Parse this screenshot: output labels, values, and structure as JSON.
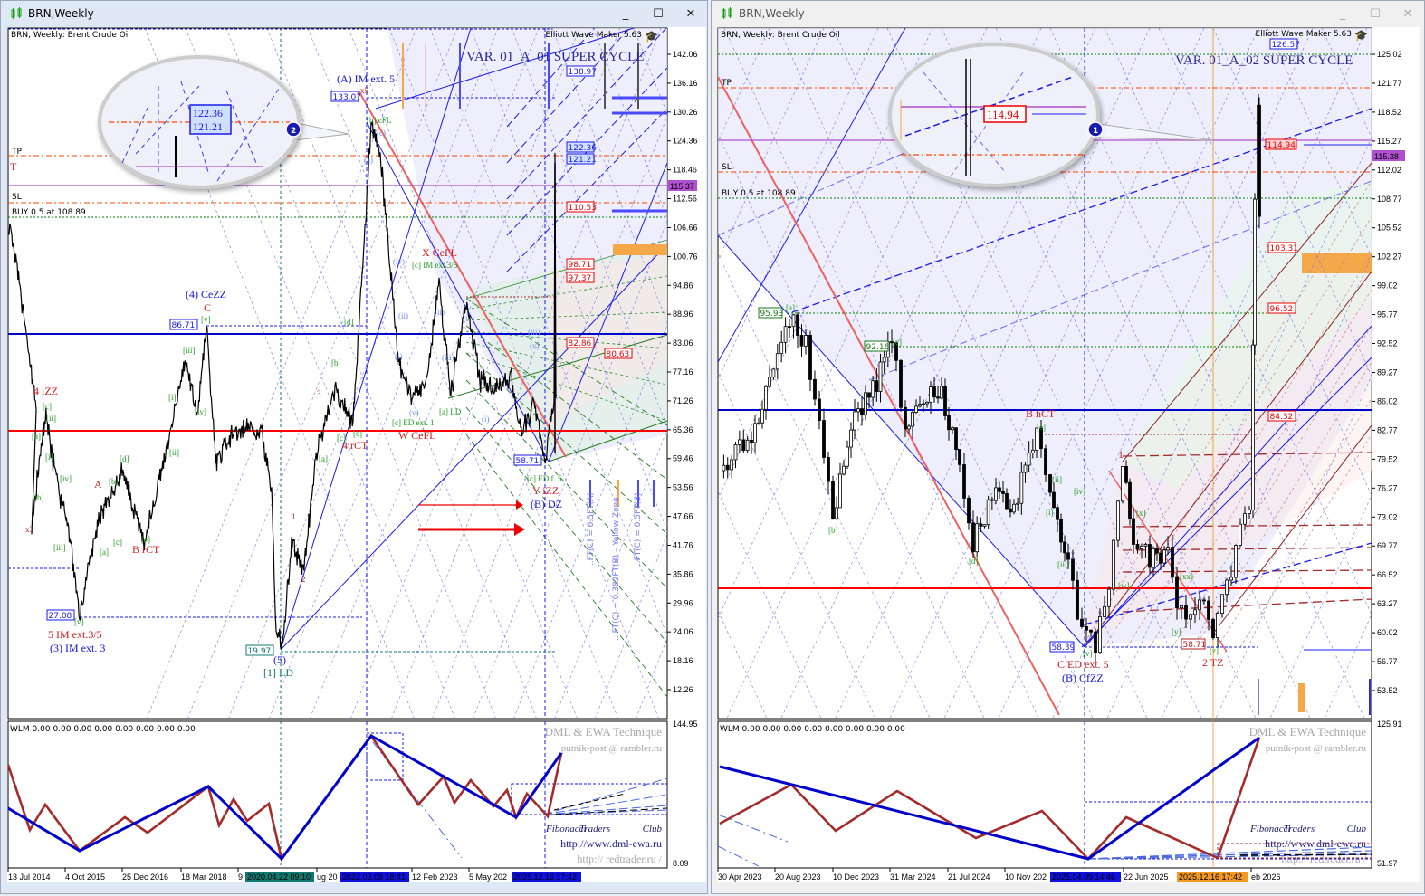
{
  "colors": {
    "wave_red": "#cc2020",
    "wave_green": "#1f9a1f",
    "wave_blue": "#1515e0",
    "roman_blue": "#6e8fe6",
    "teal": "#107a70",
    "tp_line": "#ff4500",
    "buy_line": "#008000",
    "support": "#0000cc",
    "resistance": "#ff0000",
    "current": "#b050d0",
    "zone": "#f5a84a",
    "zigzag_blue": "#0000cc",
    "zigzag_red": "#a52a2a"
  },
  "windows": [
    {
      "title": "BRN,Weekly",
      "chart_label": "BRN, Weekly:  Brent Crude Oil",
      "ewm": "Elliott Wave Maker 5.63",
      "variant": "VAR. 01_A_01 SUPER CYCLE",
      "levels": {
        "tp": "TP",
        "t": "T",
        "sl": "SL",
        "buy": "BUY 0.5 at 108.89"
      },
      "current_price": "115.37",
      "price_axis": [
        "142.06",
        "136.16",
        "130.26",
        "124.36",
        "118.46",
        "112.56",
        "106.66",
        "100.76",
        "94.86",
        "88.96",
        "83.06",
        "77.16",
        "71.26",
        "65.36",
        "59.46",
        "53.56",
        "47.66",
        "41.76",
        "35.86",
        "29.96",
        "24.06",
        "18.16",
        "12.26"
      ],
      "time_axis": [
        "13 Jul 2014",
        "4 Oct 2015",
        "25 Dec 2016",
        "18 Mar 2018",
        "9",
        "ug 20",
        "12 Feb 2023",
        "5 May 202"
      ],
      "time_markers": [
        "2020.04.22 09:10",
        "2022.03.08 18:41",
        "2025.12.16 17:42"
      ],
      "indicator": {
        "header": "WLM 0.00 0.00 0.00 0.00 0.00 0.00 0.00 0.00",
        "max": "144.95",
        "min": "8.09"
      },
      "watermark": [
        "DML & EWA Technique",
        "putnik-post @ rambler.ru",
        "Fibonacci",
        "Traders",
        "Club",
        "http://www.dml-ewa.ru",
        "http:// redtrader.ru /"
      ],
      "callout_badge": "2",
      "callout_values": [
        "122.36",
        "121.21"
      ],
      "price_tags": [
        {
          "t": "133.07",
          "c": "blue"
        },
        {
          "t": "138.97",
          "c": "blue"
        },
        {
          "t": "122.36",
          "c": "blue"
        },
        {
          "t": "121.21",
          "c": "blue"
        },
        {
          "t": "110.53",
          "c": "red"
        },
        {
          "t": "98.71",
          "c": "red"
        },
        {
          "t": "97.37",
          "c": "red"
        },
        {
          "t": "82.86",
          "c": "red"
        },
        {
          "t": "80.63",
          "c": "red"
        },
        {
          "t": "86.71",
          "c": "blue"
        },
        {
          "t": "27.08",
          "c": "blue"
        },
        {
          "t": "19.97",
          "c": "teal"
        },
        {
          "t": "58.71",
          "c": "blue"
        }
      ],
      "wave_labels": [
        {
          "t": "(A) IM ext. 5",
          "c": "blue"
        },
        {
          "t": "x5",
          "c": "red"
        },
        {
          "t": "[b] cFL",
          "c": "green"
        },
        {
          "t": "X CeFL",
          "c": "red"
        },
        {
          "t": "[c] IM ext.3/5",
          "c": "green"
        },
        {
          "t": "(4) CeZZ",
          "c": "blue"
        },
        {
          "t": "C",
          "c": "red"
        },
        {
          "t": "[v]",
          "c": "green"
        },
        {
          "t": "[d]",
          "c": "green"
        },
        {
          "t": "4 iZZ",
          "c": "red"
        },
        {
          "t": "[c]",
          "c": "green"
        },
        {
          "t": "[ii]",
          "c": "green"
        },
        {
          "t": "[a]",
          "c": "green"
        },
        {
          "t": "[i]",
          "c": "green"
        },
        {
          "t": "[iv]",
          "c": "green"
        },
        {
          "t": "[b]",
          "c": "green"
        },
        {
          "t": "x3",
          "c": "red"
        },
        {
          "t": "[iii]",
          "c": "green"
        },
        {
          "t": "A",
          "c": "red"
        },
        {
          "t": "[b]",
          "c": "green"
        },
        {
          "t": "[d]",
          "c": "green"
        },
        {
          "t": "[c]",
          "c": "green"
        },
        {
          "t": "[a]",
          "c": "green"
        },
        {
          "t": "[e]",
          "c": "green"
        },
        {
          "t": "B rCT",
          "c": "red"
        },
        {
          "t": "[i]",
          "c": "green"
        },
        {
          "t": "[iii]",
          "c": "green"
        },
        {
          "t": "[iv]",
          "c": "green"
        },
        {
          "t": "[ii]",
          "c": "green"
        },
        {
          "t": "3",
          "c": "red"
        },
        {
          "t": "[b]",
          "c": "green"
        },
        {
          "t": "[c]",
          "c": "green"
        },
        {
          "t": "[e]",
          "c": "green"
        },
        {
          "t": "4 rCT",
          "c": "red"
        },
        {
          "t": "[a]",
          "c": "green"
        },
        {
          "t": "1",
          "c": "red"
        },
        {
          "t": "2",
          "c": "red"
        },
        {
          "t": "[v]",
          "c": "green"
        },
        {
          "t": "5 IM ext.3/5",
          "c": "red"
        },
        {
          "t": "(3) IM ext. 3",
          "c": "blue"
        },
        {
          "t": "(5)",
          "c": "blue"
        },
        {
          "t": "[1] LD",
          "c": "teal"
        },
        {
          "t": "[c] ED ext. 1",
          "c": "green"
        },
        {
          "t": "W CeFL",
          "c": "red"
        },
        {
          "t": "[a] LD",
          "c": "green"
        },
        {
          "t": "[c] ED f. 5",
          "c": "green"
        },
        {
          "t": "Y iZZ",
          "c": "red"
        },
        {
          "t": "(B) DZ",
          "c": "blue"
        },
        {
          "t": "(ii)",
          "c": "roman"
        },
        {
          "t": "(iv)",
          "c": "roman"
        },
        {
          "t": "(i)",
          "c": "roman"
        },
        {
          "t": "(iii)",
          "c": "roman"
        },
        {
          "t": "(v)",
          "c": "roman"
        },
        {
          "t": "(ii)",
          "c": "roman"
        },
        {
          "t": "(i)",
          "c": "roman"
        },
        {
          "t": "(iii)",
          "c": "roman"
        },
        {
          "t": "(v)",
          "c": "roman"
        },
        {
          "t": "(a)",
          "c": "roman"
        },
        {
          "t": "(c)",
          "c": "roman"
        }
      ],
      "ft_labels": [
        "...FT(C) = 0.5FT(A)",
        "...FT(C) = 0.382FT(B) – Yellow Zone",
        "...FT(C) = 0.5FT(B)"
      ]
    },
    {
      "title": "BRN,Weekly",
      "chart_label": "BRN, Weekly:  Brent Crude Oil",
      "ewm": "Elliott Wave Maker 5.63",
      "variant": "VAR. 01_A_02 SUPER CYCLE",
      "levels": {
        "tp": "TP",
        "sl": "SL",
        "buy": "BUY 0.5 at 108.89"
      },
      "current_price": "115.38",
      "price_axis": [
        "125.02",
        "121.77",
        "118.52",
        "115.27",
        "112.02",
        "108.77",
        "105.52",
        "102.27",
        "99.02",
        "95.77",
        "92.52",
        "89.27",
        "86.02",
        "82.77",
        "79.52",
        "76.27",
        "73.02",
        "69.77",
        "66.52",
        "63.27",
        "60.02",
        "56.77",
        "53.52"
      ],
      "time_axis": [
        "30 Apr 2023",
        "20 Aug 2023",
        "10 Dec 2023",
        "31 Mar 2024",
        "21 Jul 2024",
        "10 Nov 202",
        "22 Jun 2025",
        "eb 2026"
      ],
      "time_markers": [
        "2025.04.09 14:46",
        "2025.12.16 17:42"
      ],
      "indicator": {
        "header": "WLM 0.00 0.00 0.00 0.00 0.00 0.00 0.00 0.00",
        "max": "125.91",
        "min": "51.97"
      },
      "watermark": [
        "DML & EWA Technique",
        "putnik-post @ rambler.ru",
        "Fibonacci",
        "Traders",
        "Club",
        "http://www.dml-ewa.ru",
        "http:// redtrader.ru /"
      ],
      "callout_badge": "1",
      "callout_values": [
        "114.94"
      ],
      "price_tags": [
        {
          "t": "126.57",
          "c": "blue"
        },
        {
          "t": "114.94",
          "c": "red"
        },
        {
          "t": "103.31",
          "c": "red"
        },
        {
          "t": "96.52",
          "c": "red"
        },
        {
          "t": "84.32",
          "c": "red"
        },
        {
          "t": "95.93",
          "c": "green"
        },
        {
          "t": "92.16",
          "c": "green"
        },
        {
          "t": "58.39",
          "c": "blue"
        },
        {
          "t": "58.71",
          "c": "red"
        }
      ],
      "wave_labels": [
        {
          "t": "[a]",
          "c": "green"
        },
        {
          "t": "[c]",
          "c": "green"
        },
        {
          "t": "B hCT",
          "c": "red"
        },
        {
          "t": "[e]",
          "c": "green"
        },
        {
          "t": "[b]",
          "c": "green"
        },
        {
          "t": "[d]",
          "c": "green"
        },
        {
          "t": "[ii]",
          "c": "green"
        },
        {
          "t": "[iv]",
          "c": "green"
        },
        {
          "t": "[i]",
          "c": "green"
        },
        {
          "t": "[iii]",
          "c": "green"
        },
        {
          "t": "[v]",
          "c": "green"
        },
        {
          "t": "C ED ext. 5",
          "c": "red"
        },
        {
          "t": "(B) CfZZ",
          "c": "blue"
        },
        {
          "t": "1",
          "c": "red"
        },
        {
          "t": "[x]",
          "c": "green"
        },
        {
          "t": "[w]",
          "c": "green"
        },
        {
          "t": "[xx]",
          "c": "green"
        },
        {
          "t": "[y]",
          "c": "green"
        },
        {
          "t": "[z]",
          "c": "green"
        },
        {
          "t": "2 TZ",
          "c": "red"
        }
      ]
    }
  ]
}
